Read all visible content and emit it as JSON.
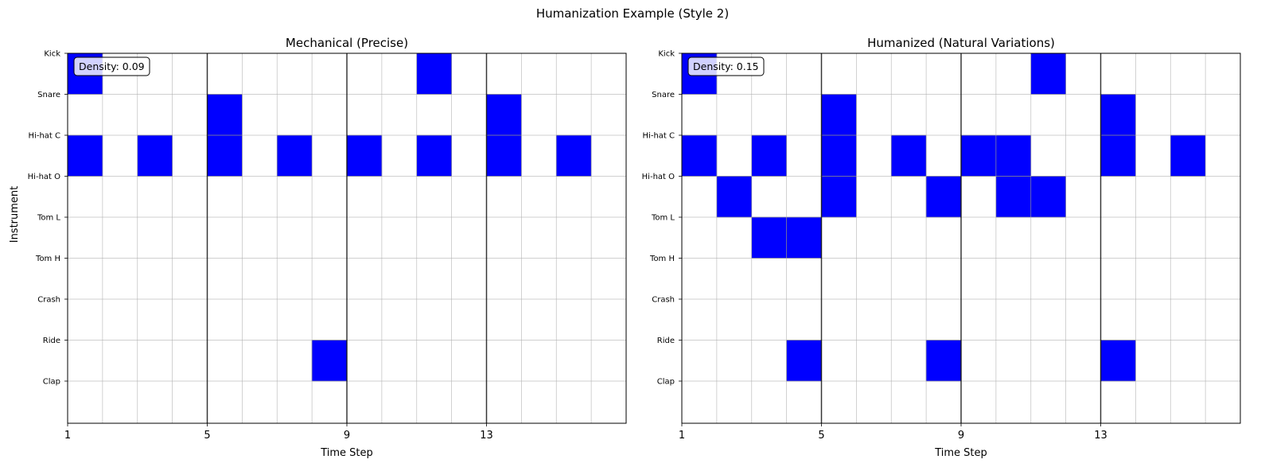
{
  "figure": {
    "title": "Humanization Example (Style 2)"
  },
  "chart_data": [
    {
      "type": "heatmap",
      "title": "Mechanical (Precise)",
      "xlabel": "Time Step",
      "ylabel": "Instrument",
      "x_ticks": [
        1,
        5,
        9,
        13
      ],
      "steps": 16,
      "instruments": [
        "Kick",
        "Snare",
        "Hi-hat C",
        "Hi-hat O",
        "Tom L",
        "Tom H",
        "Crash",
        "Ride",
        "Clap"
      ],
      "beat_lines": [
        5,
        9,
        13
      ],
      "grid": true,
      "annotation": "Density: 0.09",
      "active_color": "#0000ff",
      "hits": [
        [
          1,
          "Kick"
        ],
        [
          11,
          "Kick"
        ],
        [
          5,
          "Snare"
        ],
        [
          13,
          "Snare"
        ],
        [
          1,
          "Hi-hat C"
        ],
        [
          3,
          "Hi-hat C"
        ],
        [
          5,
          "Hi-hat C"
        ],
        [
          7,
          "Hi-hat C"
        ],
        [
          9,
          "Hi-hat C"
        ],
        [
          11,
          "Hi-hat C"
        ],
        [
          13,
          "Hi-hat C"
        ],
        [
          15,
          "Hi-hat C"
        ],
        [
          8,
          "Ride"
        ]
      ]
    },
    {
      "type": "heatmap",
      "title": "Humanized (Natural Variations)",
      "xlabel": "Time Step",
      "ylabel": "",
      "x_ticks": [
        1,
        5,
        9,
        13
      ],
      "steps": 16,
      "instruments": [
        "Kick",
        "Snare",
        "Hi-hat C",
        "Hi-hat O",
        "Tom L",
        "Tom H",
        "Crash",
        "Ride",
        "Clap"
      ],
      "beat_lines": [
        5,
        9,
        13
      ],
      "grid": true,
      "annotation": "Density: 0.15",
      "active_color": "#0000ff",
      "hits": [
        [
          1,
          "Kick"
        ],
        [
          11,
          "Kick"
        ],
        [
          5,
          "Snare"
        ],
        [
          13,
          "Snare"
        ],
        [
          1,
          "Hi-hat C"
        ],
        [
          3,
          "Hi-hat C"
        ],
        [
          5,
          "Hi-hat C"
        ],
        [
          7,
          "Hi-hat C"
        ],
        [
          9,
          "Hi-hat C"
        ],
        [
          10,
          "Hi-hat C"
        ],
        [
          13,
          "Hi-hat C"
        ],
        [
          15,
          "Hi-hat C"
        ],
        [
          2,
          "Hi-hat O"
        ],
        [
          5,
          "Hi-hat O"
        ],
        [
          8,
          "Hi-hat O"
        ],
        [
          10,
          "Hi-hat O"
        ],
        [
          11,
          "Hi-hat O"
        ],
        [
          3,
          "Tom L"
        ],
        [
          4,
          "Tom L"
        ],
        [
          4,
          "Ride"
        ],
        [
          8,
          "Ride"
        ],
        [
          13,
          "Ride"
        ]
      ]
    }
  ]
}
